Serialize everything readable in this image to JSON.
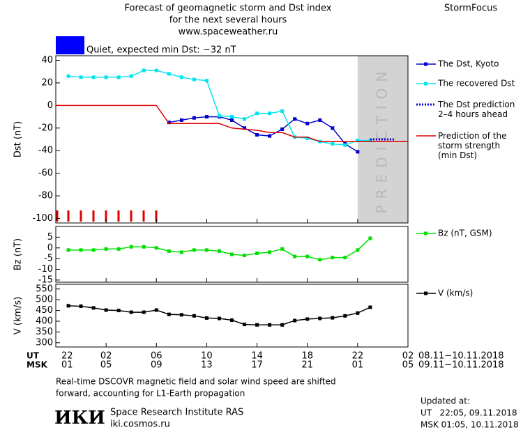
{
  "header": {
    "title_lines": [
      "Forecast of geomagnetic storm and Dst index",
      "for the next several hours",
      "www.spaceweather.ru"
    ],
    "brand": "StormFocus",
    "status": {
      "text": "Quiet, expected min Dst: −32 nT",
      "color": "#0000ff"
    }
  },
  "chart_data": [
    {
      "type": "line",
      "ylabel": "Dst (nT)",
      "xlim": [
        0,
        28
      ],
      "ylim": [
        -104,
        44
      ],
      "yticks": [
        40,
        20,
        0,
        -20,
        -40,
        -60,
        -80,
        -100
      ],
      "prediction_band": {
        "label": "PREDICTION",
        "xrange": [
          24,
          28
        ],
        "color": "#d3d3d3"
      },
      "series": [
        {
          "name": "The Dst, Kyoto",
          "color": "#0000cc",
          "marker": "square",
          "x": [
            9,
            10,
            11,
            12,
            13,
            14,
            15,
            16,
            17,
            18,
            19,
            20,
            21,
            22,
            23,
            24
          ],
          "values": [
            -15,
            -13,
            -11,
            -10,
            -10,
            -13,
            -20,
            -26,
            -27,
            -21,
            -12,
            -16,
            -13,
            -20,
            -34,
            -41
          ]
        },
        {
          "name": "The recovered Dst",
          "color": "#00e5ee",
          "marker": "square",
          "x": [
            1,
            2,
            3,
            4,
            5,
            6,
            7,
            8,
            9,
            10,
            11,
            12,
            13,
            14,
            15,
            16,
            17,
            18,
            19,
            20,
            21,
            22,
            23,
            24,
            25
          ],
          "values": [
            26,
            25,
            25,
            25,
            25,
            26,
            31,
            31,
            28,
            25,
            23,
            22,
            -9,
            -10,
            -12,
            -7,
            -7,
            -5,
            -28,
            -29,
            -32,
            -34,
            -35,
            -31,
            -31
          ]
        },
        {
          "name": "The Dst prediction\n2–4 hours ahead",
          "color": "#0000cc",
          "dashed": true,
          "x": [
            25,
            27
          ],
          "values": [
            -30,
            -30
          ]
        },
        {
          "name": "Prediction of the\nstorm strength\n(min Dst)",
          "color": "#e00000",
          "x": [
            0,
            8,
            9,
            13,
            14,
            15,
            16,
            17,
            18,
            19,
            20,
            21,
            28
          ],
          "values": [
            0,
            0,
            -16,
            -16,
            -20,
            -21,
            -22,
            -24,
            -24,
            -28,
            -28,
            -32,
            -32
          ]
        }
      ]
    },
    {
      "type": "line",
      "ylabel": "Bz (nT)",
      "xlim": [
        0,
        28
      ],
      "ylim": [
        -16,
        10
      ],
      "yticks": [
        5,
        0,
        -5,
        -10,
        -15
      ],
      "series": [
        {
          "name": "Bz (nT, GSM)",
          "color": "#00e000",
          "marker": "square",
          "x": [
            1,
            2,
            3,
            4,
            5,
            6,
            7,
            8,
            9,
            10,
            11,
            12,
            13,
            14,
            15,
            16,
            17,
            18,
            19,
            20,
            21,
            22,
            23,
            24,
            25
          ],
          "values": [
            -1,
            -1,
            -1,
            -0.5,
            -0.5,
            0.5,
            0.5,
            0,
            -1.5,
            -2,
            -1,
            -1,
            -1.5,
            -3,
            -3.5,
            -2.5,
            -2,
            -0.5,
            -4,
            -4,
            -5.5,
            -4.5,
            -4.5,
            -1,
            4.5
          ]
        }
      ]
    },
    {
      "type": "line",
      "ylabel": "V (km/s)",
      "xlim": [
        0,
        28
      ],
      "ylim": [
        280,
        572
      ],
      "yticks": [
        550,
        500,
        450,
        400,
        350,
        300
      ],
      "series": [
        {
          "name": "V (km/s)",
          "color": "#000000",
          "marker": "square",
          "x": [
            1,
            2,
            3,
            4,
            5,
            6,
            7,
            8,
            9,
            10,
            11,
            12,
            13,
            14,
            15,
            16,
            17,
            18,
            19,
            20,
            21,
            22,
            23,
            24,
            25
          ],
          "values": [
            472,
            470,
            462,
            452,
            450,
            442,
            442,
            452,
            432,
            430,
            425,
            415,
            413,
            405,
            385,
            383,
            383,
            383,
            403,
            410,
            413,
            416,
            425,
            438,
            465
          ]
        }
      ],
      "xticks": [
        {
          "value": 0,
          "label": "22"
        },
        {
          "value": 4,
          "label": "02"
        },
        {
          "value": 8,
          "label": "06"
        },
        {
          "value": 12,
          "label": "10"
        },
        {
          "value": 16,
          "label": "14"
        },
        {
          "value": 20,
          "label": "18"
        },
        {
          "value": 24,
          "label": "22"
        },
        {
          "value": 28,
          "label": "02"
        }
      ],
      "x2ticks": [
        {
          "value": 0,
          "label": "01"
        },
        {
          "value": 4,
          "label": "05"
        },
        {
          "value": 8,
          "label": "09"
        },
        {
          "value": 12,
          "label": "13"
        },
        {
          "value": 16,
          "label": "17"
        },
        {
          "value": 20,
          "label": "21"
        },
        {
          "value": 24,
          "label": "01"
        },
        {
          "value": 28,
          "label": "05"
        }
      ],
      "xlabel": "UT",
      "x2label": "MSK",
      "xrange_text": "08.11−10.11.2018",
      "x2range_text": "09.11−10.11.2018"
    }
  ],
  "footer": {
    "note_lines": [
      "Real-time DSCOVR magnetic field and solar wind speed are shifted",
      "forward, accounting for L1-Earth propagation"
    ],
    "logo": "ИКИ",
    "institute": "Space Research Institute RAS",
    "site": "iki.cosmos.ru",
    "updated_title": "Updated at:",
    "updated_ut": "UT   22:05, 09.11.2018",
    "updated_msk": "MSK 01:05, 10.11.2018"
  }
}
